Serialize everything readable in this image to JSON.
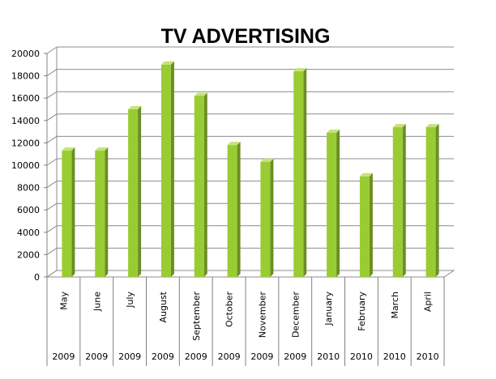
{
  "chart_data": {
    "type": "bar",
    "title": "TV ADVERTISING",
    "xlabel": "",
    "ylabel": "",
    "categories": [
      "May",
      "June",
      "July",
      "August",
      "September",
      "October",
      "November",
      "December",
      "January",
      "February",
      "March",
      "April"
    ],
    "years": [
      "2009",
      "2009",
      "2009",
      "2009",
      "2009",
      "2009",
      "2009",
      "2009",
      "2010",
      "2010",
      "2010",
      "2010"
    ],
    "values": [
      11300,
      11300,
      15000,
      19000,
      16200,
      11800,
      10300,
      18400,
      12900,
      9000,
      13400,
      13400
    ],
    "ylim": [
      0,
      20000
    ],
    "yticks": [
      "0",
      "2000",
      "4000",
      "6000",
      "8000",
      "10000",
      "12000",
      "14000",
      "16000",
      "18000",
      "20000"
    ],
    "grid": true,
    "legend": "none",
    "colors": {
      "bar_front": "#99cc33",
      "bar_side": "#6b8e23",
      "bar_top": "#c5e37a",
      "grid": "#8c8c8c",
      "axis": "#808080"
    }
  }
}
